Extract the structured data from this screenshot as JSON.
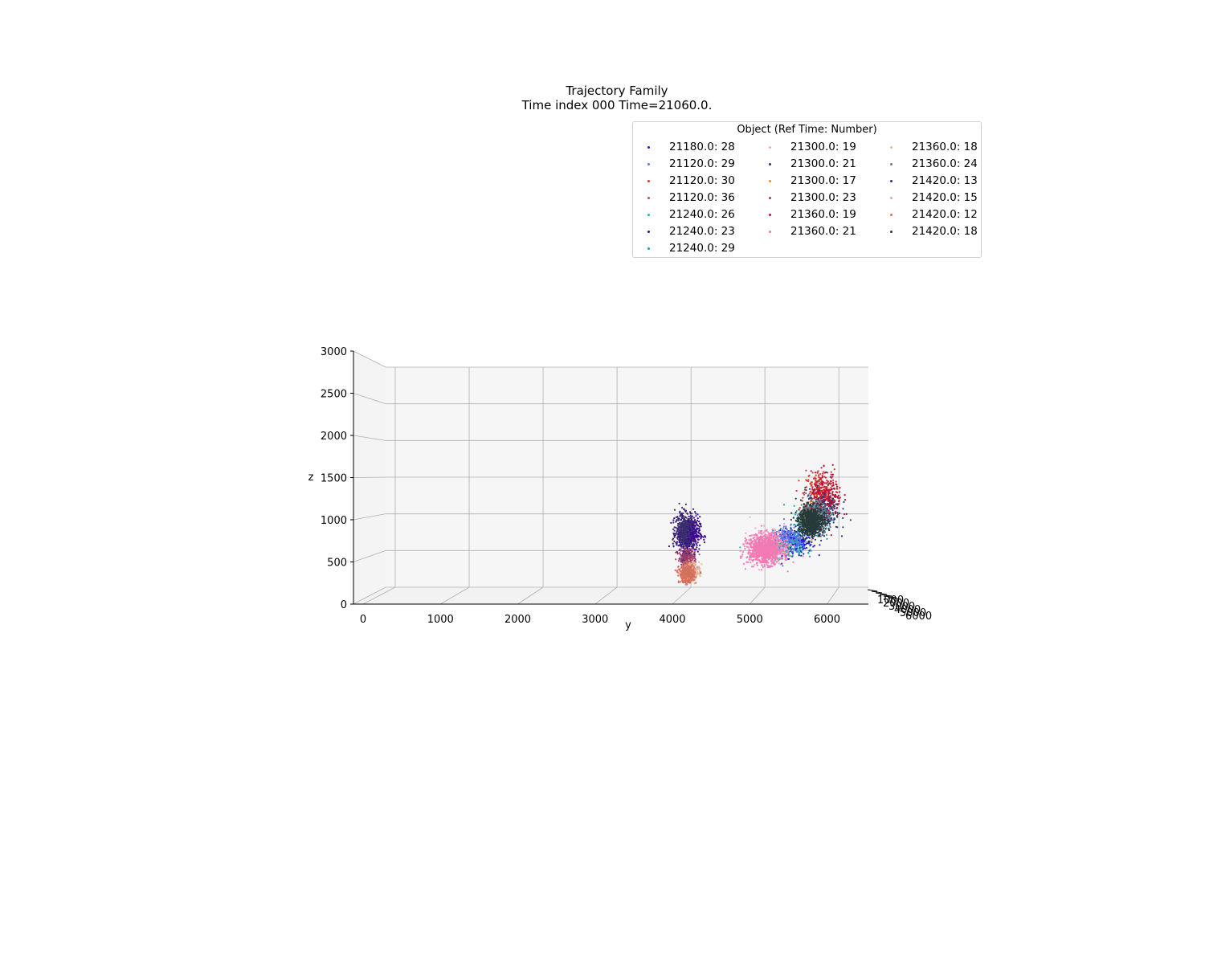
{
  "chart_data": {
    "type": "scatter",
    "title": "Trajectory Family",
    "subtitle": "Time index 000 Time=21060.0.",
    "ylabel": "y",
    "zlabel": "z",
    "y_ticks": [
      "0",
      "1000",
      "2000",
      "3000",
      "4000",
      "5000",
      "6000"
    ],
    "z_ticks": [
      "0",
      "500",
      "1000",
      "1500",
      "2000",
      "2500",
      "3000"
    ],
    "x_ticks_overlapping": [
      "1000",
      "2000",
      "3000",
      "4000",
      "5000",
      "6000"
    ],
    "ylim": [
      0,
      6400
    ],
    "zlim": [
      0,
      3000
    ],
    "grid": true,
    "legend": {
      "title": "Object (Ref Time: Number)",
      "placement": "top-right",
      "columns": 3
    },
    "series": [
      {
        "name": "21180.0: 28",
        "color": "#1f1fd8",
        "y_center": 5500,
        "z_center": 680,
        "y_spread": 260,
        "z_spread": 150,
        "count": 300
      },
      {
        "name": "21120.0: 29",
        "color": "#5a78e6",
        "y_center": 5450,
        "z_center": 720,
        "y_spread": 250,
        "z_spread": 160,
        "count": 260
      },
      {
        "name": "21120.0: 30",
        "color": "#d63a2f",
        "y_center": 5850,
        "z_center": 1300,
        "y_spread": 200,
        "z_spread": 300,
        "count": 260
      },
      {
        "name": "21120.0: 36",
        "color": "#b0508a",
        "y_center": 4150,
        "z_center": 450,
        "y_spread": 110,
        "z_spread": 150,
        "count": 200
      },
      {
        "name": "21240.0: 26",
        "color": "#1fbf8f",
        "y_center": 5350,
        "z_center": 620,
        "y_spread": 280,
        "z_spread": 120,
        "count": 150
      },
      {
        "name": "21240.0: 23",
        "color": "#3b0a8f",
        "y_center": 4150,
        "z_center": 800,
        "y_spread": 150,
        "z_spread": 210,
        "count": 550
      },
      {
        "name": "21240.0: 29",
        "color": "#1f9fb8",
        "y_center": 5700,
        "z_center": 950,
        "y_spread": 180,
        "z_spread": 200,
        "count": 150
      },
      {
        "name": "21300.0: 19",
        "color": "#f0a8c8",
        "y_center": 5200,
        "z_center": 650,
        "y_spread": 250,
        "z_spread": 200,
        "count": 250
      },
      {
        "name": "21300.0: 21",
        "color": "#1f3b73",
        "y_center": 5900,
        "z_center": 1100,
        "y_spread": 220,
        "z_spread": 260,
        "count": 250
      },
      {
        "name": "21300.0: 17",
        "color": "#f08a2f",
        "y_center": 5750,
        "z_center": 1000,
        "y_spread": 150,
        "z_spread": 180,
        "count": 120
      },
      {
        "name": "21300.0: 23",
        "color": "#9a3b6a",
        "y_center": 4120,
        "z_center": 520,
        "y_spread": 90,
        "z_spread": 100,
        "count": 150
      },
      {
        "name": "21360.0: 19",
        "color": "#c0103a",
        "y_center": 5950,
        "z_center": 1250,
        "y_spread": 200,
        "z_spread": 300,
        "count": 200
      },
      {
        "name": "21360.0: 21",
        "color": "#f27ab5",
        "y_center": 5150,
        "z_center": 600,
        "y_spread": 230,
        "z_spread": 180,
        "count": 1100
      },
      {
        "name": "21360.0: 18",
        "color": "#e8b898",
        "y_center": 4200,
        "z_center": 350,
        "y_spread": 100,
        "z_spread": 100,
        "count": 150
      },
      {
        "name": "21360.0: 24",
        "color": "#5f7f8f",
        "y_center": 5800,
        "z_center": 1000,
        "y_spread": 190,
        "z_spread": 200,
        "count": 300
      },
      {
        "name": "21420.0: 13",
        "color": "#3a2f6f",
        "y_center": 4100,
        "z_center": 850,
        "y_spread": 120,
        "z_spread": 230,
        "count": 300
      },
      {
        "name": "21420.0: 15",
        "color": "#f0a0a0",
        "y_center": 4150,
        "z_center": 300,
        "y_spread": 90,
        "z_spread": 100,
        "count": 150
      },
      {
        "name": "21420.0: 12",
        "color": "#d4705a",
        "y_center": 4130,
        "z_center": 300,
        "y_spread": 100,
        "z_spread": 110,
        "count": 350
      },
      {
        "name": "21420.0: 18",
        "color": "#263a3a",
        "y_center": 5750,
        "z_center": 950,
        "y_spread": 170,
        "z_spread": 180,
        "count": 700
      }
    ]
  }
}
